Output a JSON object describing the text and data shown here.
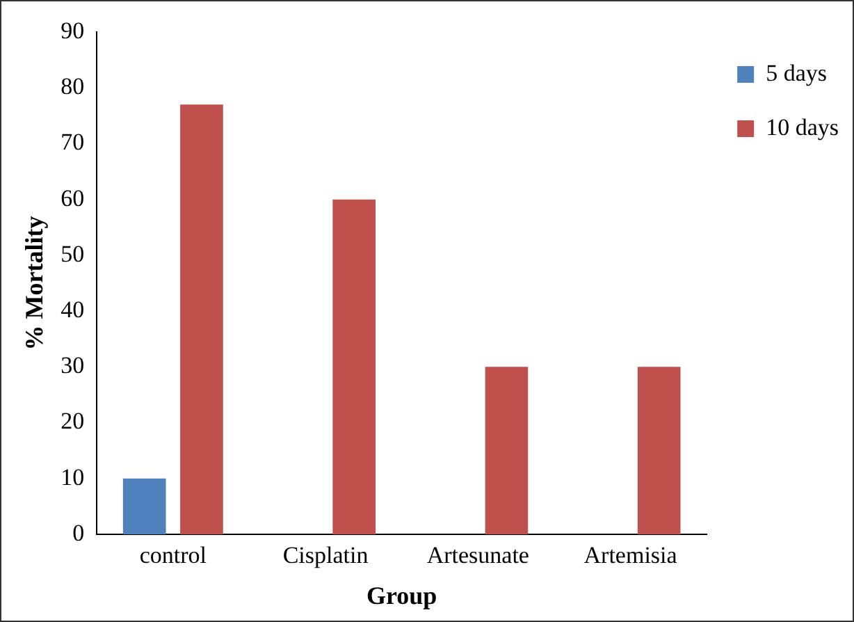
{
  "chart_data": {
    "type": "bar",
    "xlabel": "Group",
    "ylabel": "% Mortality",
    "categories": [
      "control",
      "Cisplatin",
      "Artesunate",
      "Artemisia"
    ],
    "series": [
      {
        "name": "5 days",
        "color": "#4f81bd",
        "values": [
          10,
          0,
          0,
          0
        ]
      },
      {
        "name": "10 days",
        "color": "#c0504d",
        "values": [
          77,
          60,
          30,
          30
        ]
      }
    ],
    "ylim": [
      0,
      90
    ],
    "yticks": [
      0,
      10,
      20,
      30,
      40,
      50,
      60,
      70,
      80,
      90
    ],
    "grid": false,
    "legend": "right"
  }
}
